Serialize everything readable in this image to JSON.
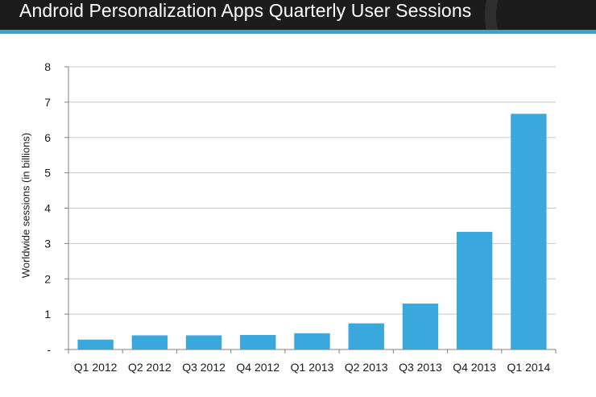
{
  "chart_data": {
    "type": "bar",
    "title": "Android Personalization Apps Quarterly User Sessions",
    "xlabel": "",
    "ylabel": "Worldwide sessions (in billions)",
    "categories": [
      "Q1 2012",
      "Q2 2012",
      "Q3 2012",
      "Q4 2012",
      "Q1 2013",
      "Q2 2013",
      "Q3 2013",
      "Q4 2013",
      "Q1 2014"
    ],
    "values": [
      0.28,
      0.4,
      0.4,
      0.41,
      0.46,
      0.74,
      1.3,
      3.33,
      6.67
    ],
    "ylim": [
      0,
      8
    ],
    "yticks": [
      0,
      1,
      2,
      3,
      4,
      5,
      6,
      7,
      8
    ],
    "ytick_labels": [
      "-",
      "1",
      "2",
      "3",
      "4",
      "5",
      "6",
      "7",
      "8"
    ],
    "grid": true,
    "bar_color": "#3aa8dc",
    "grid_color": "#c8c8c8"
  },
  "theme": {
    "title_bar_color": "#1c1c1c",
    "accent_color": "#31a6d9"
  }
}
